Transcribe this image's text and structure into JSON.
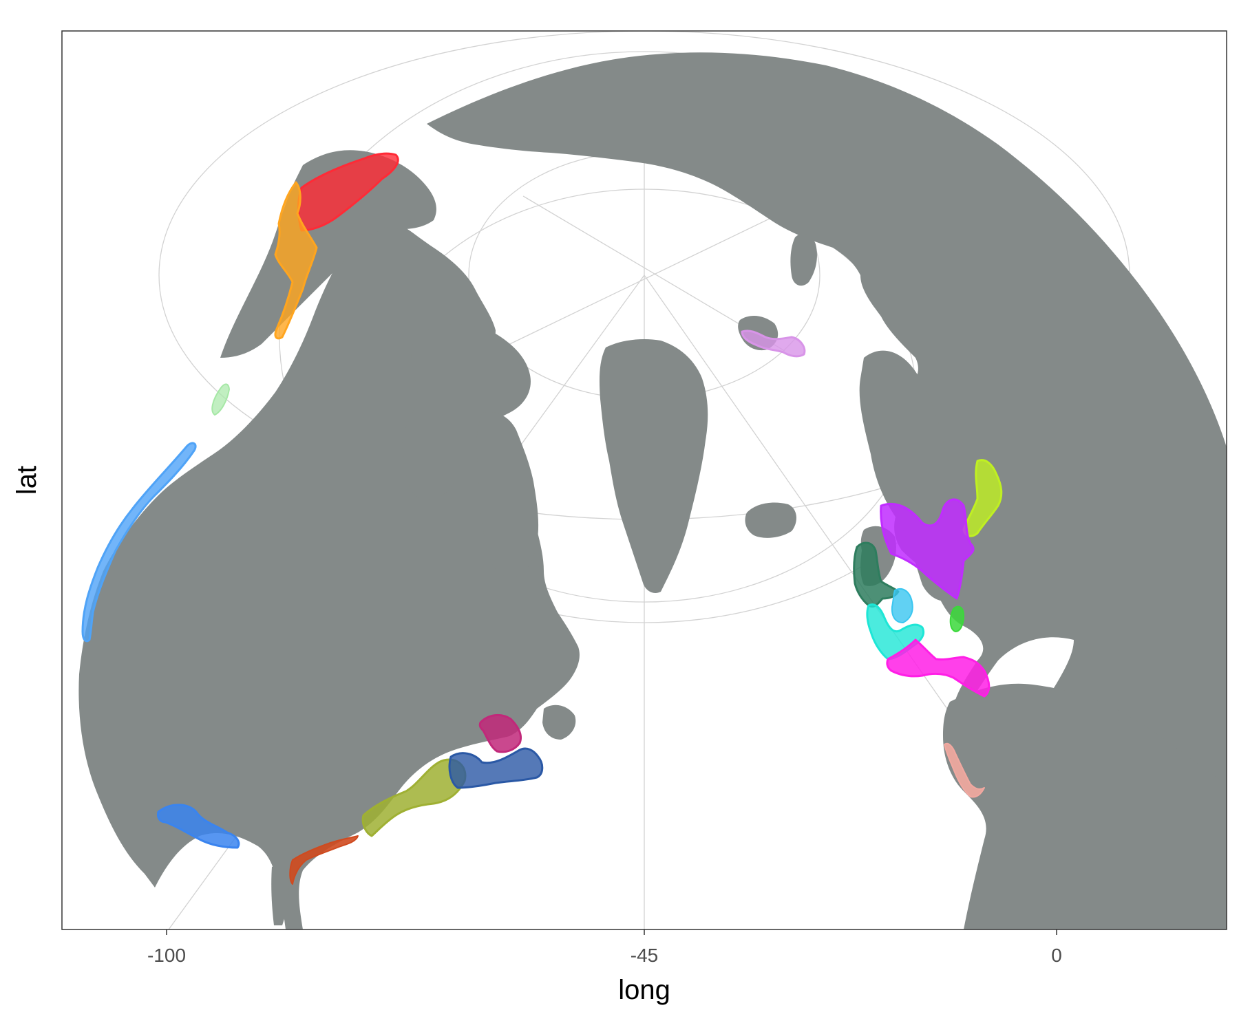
{
  "chart_data": {
    "type": "map",
    "projection": "orthographic (north polar view)",
    "xlabel": "long",
    "ylabel": "lat",
    "x_ticks": [
      "-100",
      "-45",
      "0"
    ],
    "grid": true,
    "land_color": "#848a89",
    "ocean_color": "#ffffff",
    "regions": [
      {
        "id": "alaska-north",
        "color": "#ff2a36",
        "fill_opacity": 0.8
      },
      {
        "id": "alaska-west",
        "color": "#ffa51f",
        "fill_opacity": 0.8
      },
      {
        "id": "bc-coast",
        "color": "#a6e8a6",
        "fill_opacity": 0.7
      },
      {
        "id": "us-west-coast",
        "color": "#4fa3f7",
        "fill_opacity": 0.8
      },
      {
        "id": "gulf-of-mexico",
        "color": "#3a84ef",
        "fill_opacity": 0.85
      },
      {
        "id": "us-southeast",
        "color": "#cf4a1f",
        "fill_opacity": 0.9
      },
      {
        "id": "us-northeast-shelf",
        "color": "#9fb033",
        "fill_opacity": 0.85
      },
      {
        "id": "scotian-shelf",
        "color": "#2a58a5",
        "fill_opacity": 0.8
      },
      {
        "id": "gulf-st-lawrence",
        "color": "#c1287a",
        "fill_opacity": 0.85
      },
      {
        "id": "barents-sea",
        "color": "#d894e8",
        "fill_opacity": 0.8
      },
      {
        "id": "baltic-sea",
        "color": "#c0f022",
        "fill_opacity": 0.8
      },
      {
        "id": "north-sea",
        "color": "#c02cff",
        "fill_opacity": 0.85
      },
      {
        "id": "irish-sea",
        "color": "#2e7d5e",
        "fill_opacity": 0.85
      },
      {
        "id": "celtic-sea",
        "color": "#3ac6f0",
        "fill_opacity": 0.8
      },
      {
        "id": "english-channel",
        "color": "#3bd83b",
        "fill_opacity": 0.85
      },
      {
        "id": "bay-of-biscay-west",
        "color": "#1ee6d6",
        "fill_opacity": 0.8
      },
      {
        "id": "bay-of-biscay-iberia",
        "color": "#ff1ee6",
        "fill_opacity": 0.85
      },
      {
        "id": "canary-current",
        "color": "#f2a8a0",
        "fill_opacity": 0.9
      }
    ]
  }
}
